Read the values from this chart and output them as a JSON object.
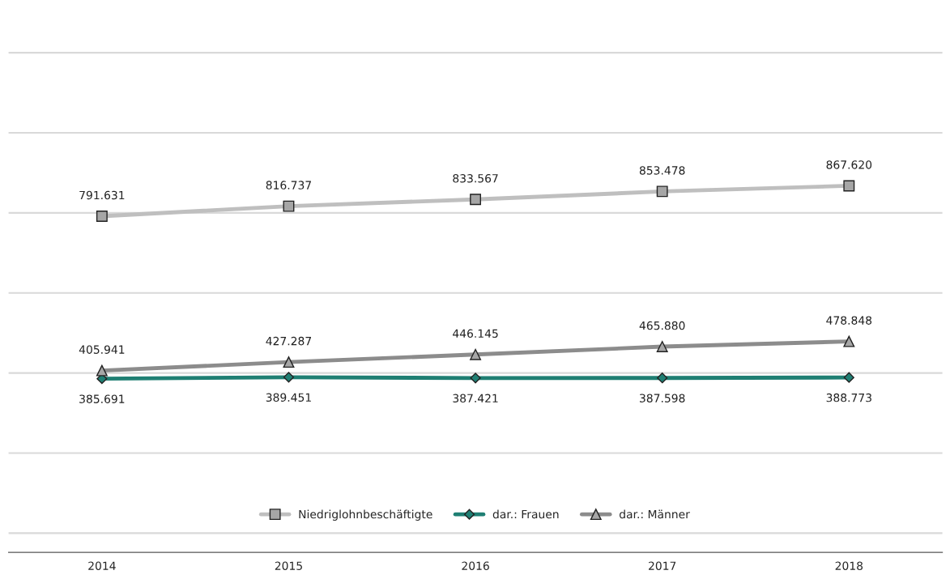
{
  "chart_data": {
    "type": "line",
    "categories": [
      "2014",
      "2015",
      "2016",
      "2017",
      "2018"
    ],
    "series": [
      {
        "name": "Niedriglohnbeschäftigte",
        "color": "#bfbfbf",
        "marker": "square",
        "values": [
          791631,
          816737,
          833567,
          853478,
          867620
        ],
        "value_labels": [
          "791.631",
          "816.737",
          "833.567",
          "853.478",
          "867.620"
        ]
      },
      {
        "name": "dar.: Frauen",
        "color": "#1f7f73",
        "marker": "diamond",
        "values": [
          385691,
          389451,
          387421,
          387598,
          388773
        ],
        "value_labels": [
          "385.691",
          "389.451",
          "387.421",
          "387.598",
          "388.773"
        ]
      },
      {
        "name": "dar.: Männer",
        "color": "#8c8c8c",
        "marker": "triangle",
        "values": [
          405941,
          427287,
          446145,
          465880,
          478848
        ],
        "value_labels": [
          "405.941",
          "427.287",
          "446.145",
          "465.880",
          "478.848"
        ]
      }
    ],
    "tick_labels": "x",
    "grid": "y",
    "legend": "bottom"
  }
}
